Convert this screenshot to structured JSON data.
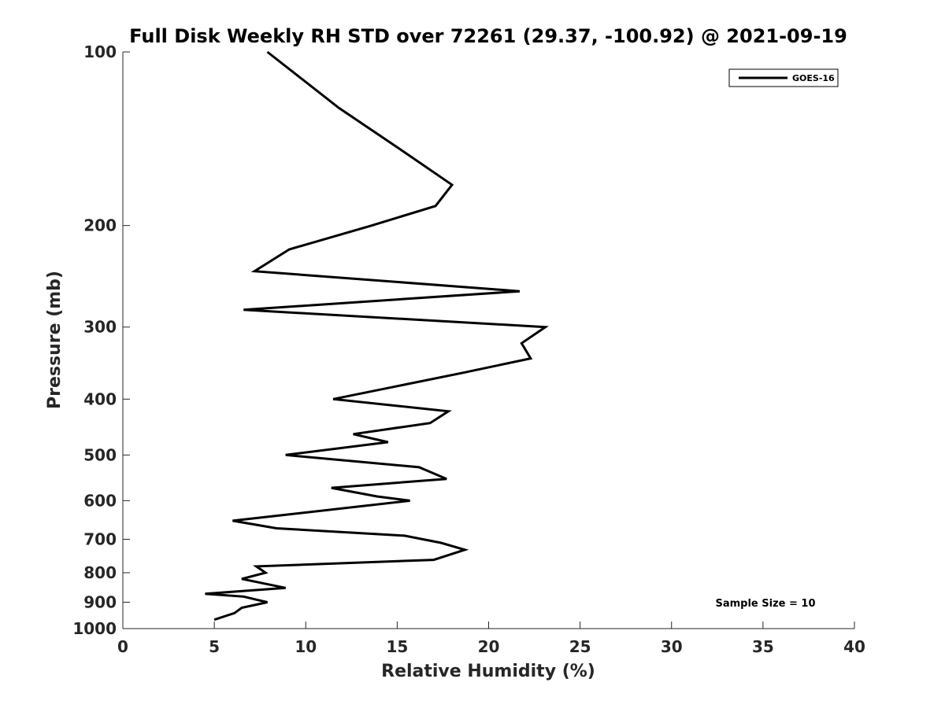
{
  "chart_data": {
    "type": "line",
    "title": "Full Disk Weekly RH STD over 72261 (29.37, -100.92) @ 2021-09-19",
    "xlabel": "Relative Humidity (%)",
    "ylabel": "Pressure (mb)",
    "xlim": [
      0,
      40
    ],
    "ylim": [
      100,
      1000
    ],
    "y_scale": "log",
    "y_reversed": true,
    "x_ticks": [
      0,
      5,
      10,
      15,
      20,
      25,
      30,
      35,
      40
    ],
    "y_ticks": [
      100,
      200,
      300,
      400,
      500,
      600,
      700,
      800,
      900,
      1000
    ],
    "grid": false,
    "legend_position": "top-right",
    "annotation": "Sample Size = 10",
    "series": [
      {
        "name": "GOES-16",
        "color": "#000000",
        "points": [
          [
            7.9,
            100
          ],
          [
            11.8,
            125
          ],
          [
            15.5,
            150
          ],
          [
            18.0,
            170
          ],
          [
            17.1,
            185
          ],
          [
            13.6,
            200
          ],
          [
            9.1,
            220
          ],
          [
            7.2,
            240
          ],
          [
            21.7,
            260
          ],
          [
            6.6,
            280
          ],
          [
            23.1,
            300
          ],
          [
            21.8,
            320
          ],
          [
            22.3,
            340
          ],
          [
            18.6,
            360
          ],
          [
            11.5,
            400
          ],
          [
            17.8,
            420
          ],
          [
            16.8,
            440
          ],
          [
            12.6,
            460
          ],
          [
            14.5,
            475
          ],
          [
            8.9,
            500
          ],
          [
            16.2,
            525
          ],
          [
            17.7,
            550
          ],
          [
            11.4,
            570
          ],
          [
            13.9,
            590
          ],
          [
            15.7,
            600
          ],
          [
            6.0,
            650
          ],
          [
            8.4,
            670
          ],
          [
            15.4,
            690
          ],
          [
            17.4,
            710
          ],
          [
            18.7,
            730
          ],
          [
            17.0,
            760
          ],
          [
            7.3,
            780
          ],
          [
            7.8,
            800
          ],
          [
            6.5,
            820
          ],
          [
            8.9,
            850
          ],
          [
            4.5,
            870
          ],
          [
            6.6,
            880
          ],
          [
            7.9,
            900
          ],
          [
            6.5,
            920
          ],
          [
            6.1,
            940
          ],
          [
            5.0,
            965
          ]
        ]
      }
    ]
  }
}
